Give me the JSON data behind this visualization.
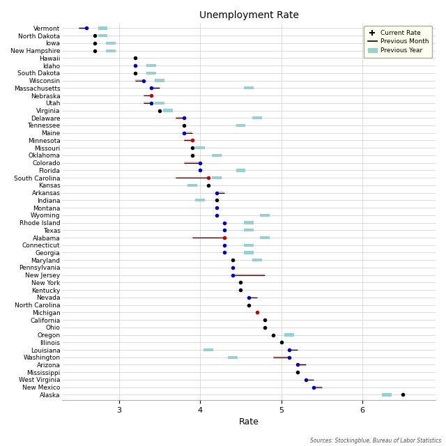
{
  "title": "Unemployment Rate",
  "xlabel": "Rate",
  "source": "Sources: Stockingblue, Bureau of Labor Statistics",
  "states": [
    "Vermont",
    "North Dakota",
    "Iowa",
    "New Hampshire",
    "Hawaii",
    "Idaho",
    "South Dakota",
    "Wisconsin",
    "Massachusetts",
    "Nebraska",
    "Utah",
    "Virginia",
    "Delaware",
    "Tennessee",
    "Maine",
    "Minnesota",
    "Missouri",
    "Oklahoma",
    "Colorado",
    "Florida",
    "South Carolina",
    "Kansas",
    "Arkansas",
    "Indiana",
    "Montana",
    "Wyoming",
    "Rhode Island",
    "Texas",
    "Alabama",
    "Connecticut",
    "Georgia",
    "Maryland",
    "Pennsylvania",
    "New Jersey",
    "New York",
    "Kentucky",
    "Nevada",
    "North Carolina",
    "Michigan",
    "California",
    "Ohio",
    "Oregon",
    "Illinois",
    "Louisiana",
    "Washington",
    "Arizona",
    "Mississippi",
    "West Virginia",
    "New Mexico",
    "Alaska"
  ],
  "current": [
    2.6,
    2.7,
    2.7,
    2.7,
    3.2,
    3.2,
    3.2,
    3.3,
    3.4,
    3.4,
    3.4,
    3.5,
    3.8,
    3.8,
    3.8,
    3.9,
    3.9,
    3.9,
    4.0,
    4.0,
    4.1,
    4.1,
    4.2,
    4.2,
    4.2,
    4.2,
    4.3,
    4.3,
    4.3,
    4.3,
    4.3,
    4.4,
    4.4,
    4.4,
    4.5,
    4.5,
    4.6,
    4.6,
    4.7,
    4.8,
    4.8,
    4.9,
    5.0,
    5.1,
    5.1,
    5.2,
    5.2,
    5.3,
    5.4,
    6.5
  ],
  "prev_month": [
    2.5,
    null,
    null,
    null,
    null,
    3.2,
    null,
    3.2,
    3.5,
    3.3,
    3.3,
    null,
    3.7,
    null,
    3.9,
    3.8,
    null,
    null,
    3.8,
    null,
    3.7,
    null,
    4.3,
    null,
    4.2,
    4.2,
    4.3,
    4.3,
    3.9,
    4.3,
    4.3,
    null,
    4.4,
    4.8,
    null,
    null,
    4.7,
    null,
    null,
    null,
    null,
    null,
    null,
    5.2,
    4.9,
    5.3,
    null,
    5.4,
    5.5,
    null
  ],
  "prev_year": [
    2.8,
    2.8,
    2.9,
    2.9,
    null,
    3.4,
    3.4,
    3.5,
    4.6,
    null,
    3.5,
    3.6,
    4.7,
    4.5,
    null,
    null,
    4.0,
    4.2,
    null,
    4.5,
    4.2,
    3.9,
    null,
    4.0,
    null,
    4.8,
    4.6,
    4.6,
    4.8,
    4.6,
    4.6,
    4.7,
    null,
    null,
    null,
    null,
    null,
    null,
    null,
    null,
    null,
    5.1,
    null,
    4.1,
    4.4,
    null,
    null,
    null,
    null,
    6.3
  ],
  "dot_colors": [
    "#0000cc",
    "#000000",
    "#000000",
    "#000000",
    "#000000",
    "#0000cc",
    "#000000",
    "#0000cc",
    "#0000cc",
    "#cc0000",
    "#0000cc",
    "#000000",
    "#0000cc",
    "#000000",
    "#0000cc",
    "#cc0000",
    "#000000",
    "#000000",
    "#0000cc",
    "#0000cc",
    "#cc0000",
    "#000000",
    "#0000cc",
    "#000000",
    "#0000cc",
    "#0000cc",
    "#0000cc",
    "#0000cc",
    "#cc0000",
    "#0000cc",
    "#0000cc",
    "#000000",
    "#0000cc",
    "#0000cc",
    "#000000",
    "#000000",
    "#0000cc",
    "#000000",
    "#cc0000",
    "#000000",
    "#000000",
    "#000000",
    "#000000",
    "#0000cc",
    "#0000cc",
    "#0000cc",
    "#000000",
    "#0000cc",
    "#0000cc",
    "#000000"
  ],
  "xlim": [
    2.3,
    6.9
  ],
  "xticks": [
    3.0,
    4.0,
    5.0,
    6.0
  ],
  "prev_year_color": "#96d0d0",
  "prev_month_color": "#f5b8b8",
  "line_color": "#000000",
  "grid_color": "#cccccc",
  "title_fontsize": 10,
  "label_fontsize": 6.5,
  "tick_fontsize": 8
}
